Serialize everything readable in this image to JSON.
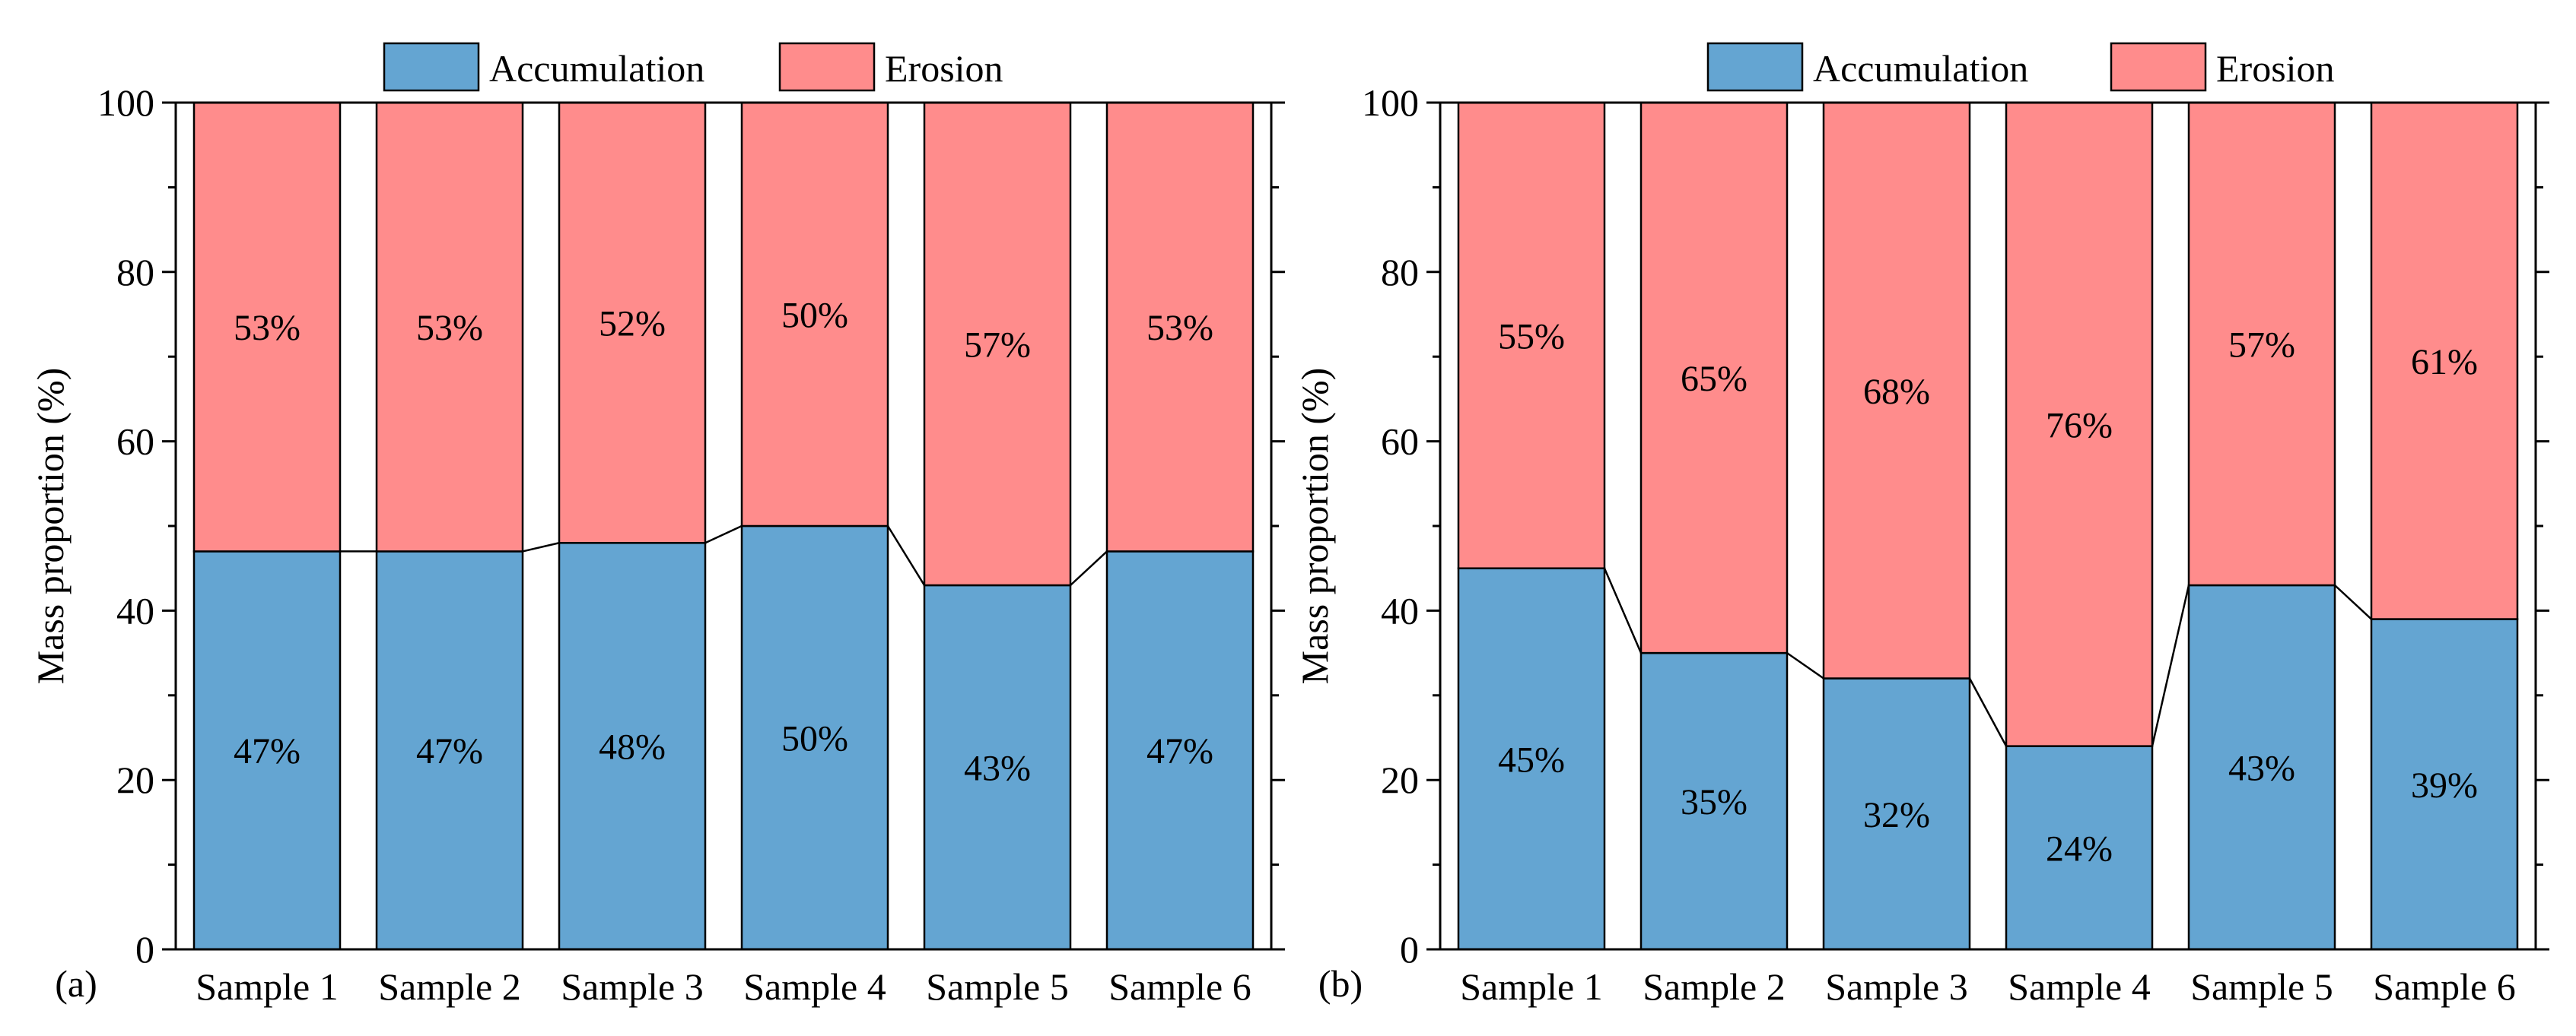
{
  "legend": {
    "accumulation": "Accumulation",
    "erosion": "Erosion"
  },
  "colors": {
    "accumulation": "#64A5D2",
    "erosion": "#FF8C8C",
    "stroke": "#000000"
  },
  "chart_data": [
    {
      "type": "bar",
      "stacked": true,
      "panel_label": "(a)",
      "categories": [
        "Sample 1",
        "Sample 2",
        "Sample 3",
        "Sample 4",
        "Sample 5",
        "Sample 6"
      ],
      "series": [
        {
          "name": "Accumulation",
          "values": [
            47,
            47,
            48,
            50,
            43,
            47
          ],
          "labels": [
            "47%",
            "47%",
            "48%",
            "50%",
            "43%",
            "47%"
          ]
        },
        {
          "name": "Erosion",
          "values": [
            53,
            53,
            52,
            50,
            57,
            53
          ],
          "labels": [
            "53%",
            "53%",
            "52%",
            "50%",
            "57%",
            "53%"
          ]
        }
      ],
      "ylabel": "Mass proportion (%)",
      "xlabel": "",
      "ylim": [
        0,
        100
      ],
      "yticks": [
        0,
        20,
        40,
        60,
        80,
        100
      ],
      "legend_position": "top-center",
      "connector_lines": true
    },
    {
      "type": "bar",
      "stacked": true,
      "panel_label": "(b)",
      "categories": [
        "Sample 1",
        "Sample 2",
        "Sample 3",
        "Sample 4",
        "Sample 5",
        "Sample 6"
      ],
      "series": [
        {
          "name": "Accumulation",
          "values": [
            45,
            35,
            32,
            24,
            43,
            39
          ],
          "labels": [
            "45%",
            "35%",
            "32%",
            "24%",
            "43%",
            "39%"
          ]
        },
        {
          "name": "Erosion",
          "values": [
            55,
            65,
            68,
            76,
            57,
            61
          ],
          "labels": [
            "55%",
            "65%",
            "68%",
            "76%",
            "57%",
            "61%"
          ]
        }
      ],
      "ylabel": "Mass proportion (%)",
      "xlabel": "",
      "ylim": [
        0,
        100
      ],
      "yticks": [
        0,
        20,
        40,
        60,
        80,
        100
      ],
      "legend_position": "top-center",
      "connector_lines": true
    }
  ]
}
